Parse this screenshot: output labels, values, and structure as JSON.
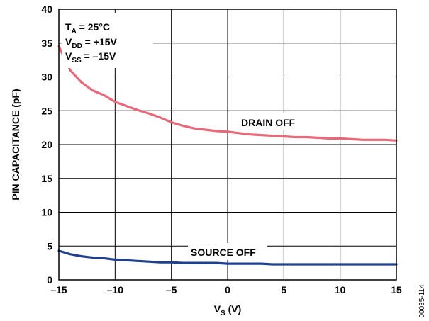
{
  "chart_data": {
    "type": "line",
    "xlabel_main": "V",
    "xlabel_sub": "S",
    "xlabel_unit": " (V)",
    "ylabel": "PIN CAPACITANCE (pF)",
    "xlim": [
      -15,
      15
    ],
    "ylim": [
      0,
      40
    ],
    "x_ticks": [
      -15,
      -10,
      -5,
      0,
      5,
      10,
      15
    ],
    "x_tick_labels": [
      "–15",
      "–10",
      "–5",
      "0",
      "5",
      "10",
      "15"
    ],
    "y_ticks": [
      0,
      5,
      10,
      15,
      20,
      25,
      30,
      35,
      40
    ],
    "y_tick_labels": [
      "0",
      "5",
      "10",
      "15",
      "20",
      "25",
      "30",
      "35",
      "40"
    ],
    "grid": true,
    "conditions": [
      {
        "main": "T",
        "sub": "A",
        "rest": " = 25°C"
      },
      {
        "main": "V",
        "sub": "DD",
        "rest": " = +15V"
      },
      {
        "main": "V",
        "sub": "SS",
        "rest": " = –15V"
      }
    ],
    "figure_id": "00035-114",
    "series": [
      {
        "name": "DRAIN OFF",
        "color": "#e8697a",
        "x": [
          -15,
          -14,
          -13,
          -12,
          -11,
          -10,
          -9,
          -8,
          -7,
          -6,
          -5,
          -4,
          -3,
          -2,
          -1,
          0,
          1,
          2,
          3,
          4,
          5,
          6,
          7,
          8,
          9,
          10,
          11,
          12,
          13,
          14,
          15
        ],
        "y": [
          34.5,
          31.0,
          29.2,
          28.0,
          27.3,
          26.3,
          25.7,
          25.1,
          24.6,
          24.0,
          23.3,
          22.8,
          22.4,
          22.2,
          22.0,
          21.9,
          21.7,
          21.5,
          21.4,
          21.3,
          21.2,
          21.1,
          21.1,
          21.0,
          20.9,
          20.9,
          20.8,
          20.7,
          20.7,
          20.7,
          20.6
        ]
      },
      {
        "name": "SOURCE OFF",
        "color": "#1f3f8f",
        "x": [
          -15,
          -14,
          -13,
          -12,
          -11,
          -10,
          -9,
          -8,
          -7,
          -6,
          -5,
          -4,
          -3,
          -2,
          -1,
          0,
          1,
          2,
          3,
          4,
          5,
          6,
          7,
          8,
          9,
          10,
          11,
          12,
          13,
          14,
          15
        ],
        "y": [
          4.3,
          3.8,
          3.5,
          3.3,
          3.2,
          3.0,
          2.9,
          2.8,
          2.7,
          2.6,
          2.6,
          2.5,
          2.5,
          2.5,
          2.5,
          2.4,
          2.4,
          2.4,
          2.4,
          2.3,
          2.3,
          2.3,
          2.3,
          2.3,
          2.3,
          2.3,
          2.3,
          2.3,
          2.3,
          2.3,
          2.3
        ]
      }
    ]
  }
}
